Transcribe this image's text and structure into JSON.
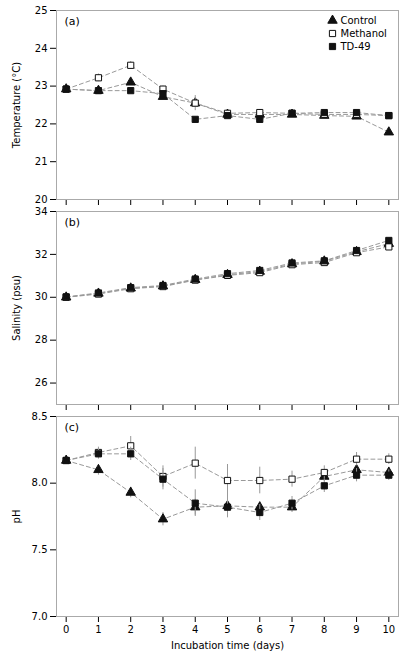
{
  "chart_data": [
    {
      "type": "line",
      "annotation": "(a)",
      "x": [
        0,
        1,
        2,
        3,
        4,
        5,
        6,
        7,
        8,
        9,
        10
      ],
      "xlim": [
        -0.3,
        10.3
      ],
      "xticks": [
        0,
        1,
        2,
        3,
        4,
        5,
        6,
        7,
        8,
        9,
        10
      ],
      "tick_labels": "y",
      "ylabel": "Temperature (°C)",
      "ylim": [
        20,
        25
      ],
      "yticks": [
        20,
        21,
        22,
        23,
        24,
        25
      ],
      "color": "#999999",
      "line_style": "dashed",
      "legend": "upper right",
      "series": [
        {
          "name": "Control",
          "marker": "triangle",
          "color": "#111111",
          "values": [
            22.92,
            22.88,
            23.1,
            22.72,
            22.55,
            22.25,
            22.25,
            22.25,
            22.22,
            22.2,
            21.78
          ],
          "errors": [
            0.05,
            0.06,
            0.08,
            0.07,
            0.06,
            0.05,
            0.05,
            0.04,
            0.04,
            0.05,
            0.05
          ]
        },
        {
          "name": "Methanol",
          "marker": "square_open",
          "color": "#111111",
          "values": [
            22.92,
            23.22,
            23.55,
            22.92,
            22.55,
            22.28,
            22.3,
            22.28,
            22.25,
            22.25,
            22.22
          ],
          "errors": [
            0.05,
            0.1,
            0.1,
            0.08,
            0.2,
            0.06,
            0.05,
            0.05,
            0.05,
            0.05,
            0.05
          ]
        },
        {
          "name": "TD-49",
          "marker": "square",
          "color": "#111111",
          "values": [
            22.92,
            22.88,
            22.88,
            22.8,
            22.12,
            22.22,
            22.12,
            22.28,
            22.3,
            22.3,
            22.22
          ],
          "errors": [
            0.05,
            0.05,
            0.05,
            0.08,
            0.05,
            0.05,
            0.05,
            0.05,
            0.05,
            0.05,
            0.05
          ]
        }
      ]
    },
    {
      "type": "line",
      "annotation": "(b)",
      "x": [
        0,
        1,
        2,
        3,
        4,
        5,
        6,
        7,
        8,
        9,
        10
      ],
      "xlim": [
        -0.3,
        10.3
      ],
      "xticks": [
        0,
        1,
        2,
        3,
        4,
        5,
        6,
        7,
        8,
        9,
        10
      ],
      "tick_labels": "y",
      "ylabel": "Salinity (psu)",
      "ylim": [
        25,
        34
      ],
      "yticks": [
        26,
        28,
        30,
        32,
        34
      ],
      "color": "#999999",
      "line_style": "dashed",
      "series": [
        {
          "name": "Control",
          "marker": "triangle",
          "color": "#111111",
          "values": [
            30.0,
            30.18,
            30.42,
            30.52,
            30.82,
            31.05,
            31.2,
            31.55,
            31.68,
            32.12,
            32.5
          ],
          "errors": [
            0.05,
            0.05,
            0.05,
            0.05,
            0.05,
            0.05,
            0.1,
            0.05,
            0.05,
            0.05,
            0.08
          ]
        },
        {
          "name": "Methanol",
          "marker": "square_open",
          "color": "#111111",
          "values": [
            30.0,
            30.15,
            30.4,
            30.5,
            30.8,
            31.02,
            31.15,
            31.52,
            31.62,
            32.08,
            32.35
          ],
          "errors": [
            0.05,
            0.05,
            0.05,
            0.05,
            0.05,
            0.05,
            0.08,
            0.05,
            0.05,
            0.05,
            0.08
          ]
        },
        {
          "name": "TD-49",
          "marker": "square",
          "color": "#111111",
          "values": [
            30.02,
            30.2,
            30.45,
            30.55,
            30.85,
            31.1,
            31.25,
            31.6,
            31.7,
            32.18,
            32.65
          ],
          "errors": [
            0.05,
            0.05,
            0.05,
            0.05,
            0.05,
            0.05,
            0.08,
            0.05,
            0.05,
            0.05,
            0.08
          ]
        }
      ]
    },
    {
      "type": "line",
      "annotation": "(c)",
      "x": [
        0,
        1,
        2,
        3,
        4,
        5,
        6,
        7,
        8,
        9,
        10
      ],
      "xlim": [
        -0.3,
        10.3
      ],
      "xticks": [
        0,
        1,
        2,
        3,
        4,
        5,
        6,
        7,
        8,
        9,
        10
      ],
      "xlabel": "Incubation time (days)",
      "ylabel": "pH",
      "ylim": [
        7.0,
        8.5
      ],
      "yticks": [
        {
          "value": 7.0,
          "label": "7.0"
        },
        {
          "value": 7.5,
          "label": "7.5"
        },
        {
          "value": 8.0,
          "label": "8.0"
        },
        {
          "value": 8.5,
          "label": "8.5"
        }
      ],
      "color": "#999999",
      "line_style": "dashed",
      "series": [
        {
          "name": "Control",
          "marker": "triangle",
          "color": "#111111",
          "values": [
            8.17,
            8.1,
            7.93,
            7.73,
            7.82,
            7.83,
            7.82,
            7.82,
            8.05,
            8.1,
            8.08
          ],
          "errors": [
            0.02,
            0.04,
            0.04,
            0.05,
            0.06,
            0.05,
            0.04,
            0.04,
            0.04,
            0.04,
            0.04
          ]
        },
        {
          "name": "Methanol",
          "marker": "square_open",
          "color": "#111111",
          "values": [
            8.17,
            8.23,
            8.28,
            8.05,
            8.15,
            8.02,
            8.02,
            8.03,
            8.08,
            8.18,
            8.18
          ],
          "errors": [
            0.02,
            0.04,
            0.07,
            0.08,
            0.12,
            0.12,
            0.1,
            0.06,
            0.05,
            0.05,
            0.04
          ]
        },
        {
          "name": "TD-49",
          "marker": "square",
          "color": "#111111",
          "values": [
            8.17,
            8.22,
            8.22,
            8.03,
            7.85,
            7.82,
            7.78,
            7.85,
            7.98,
            8.06,
            8.06
          ],
          "errors": [
            0.02,
            0.04,
            0.05,
            0.08,
            0.1,
            0.08,
            0.06,
            0.05,
            0.05,
            0.05,
            0.04
          ]
        }
      ]
    }
  ]
}
